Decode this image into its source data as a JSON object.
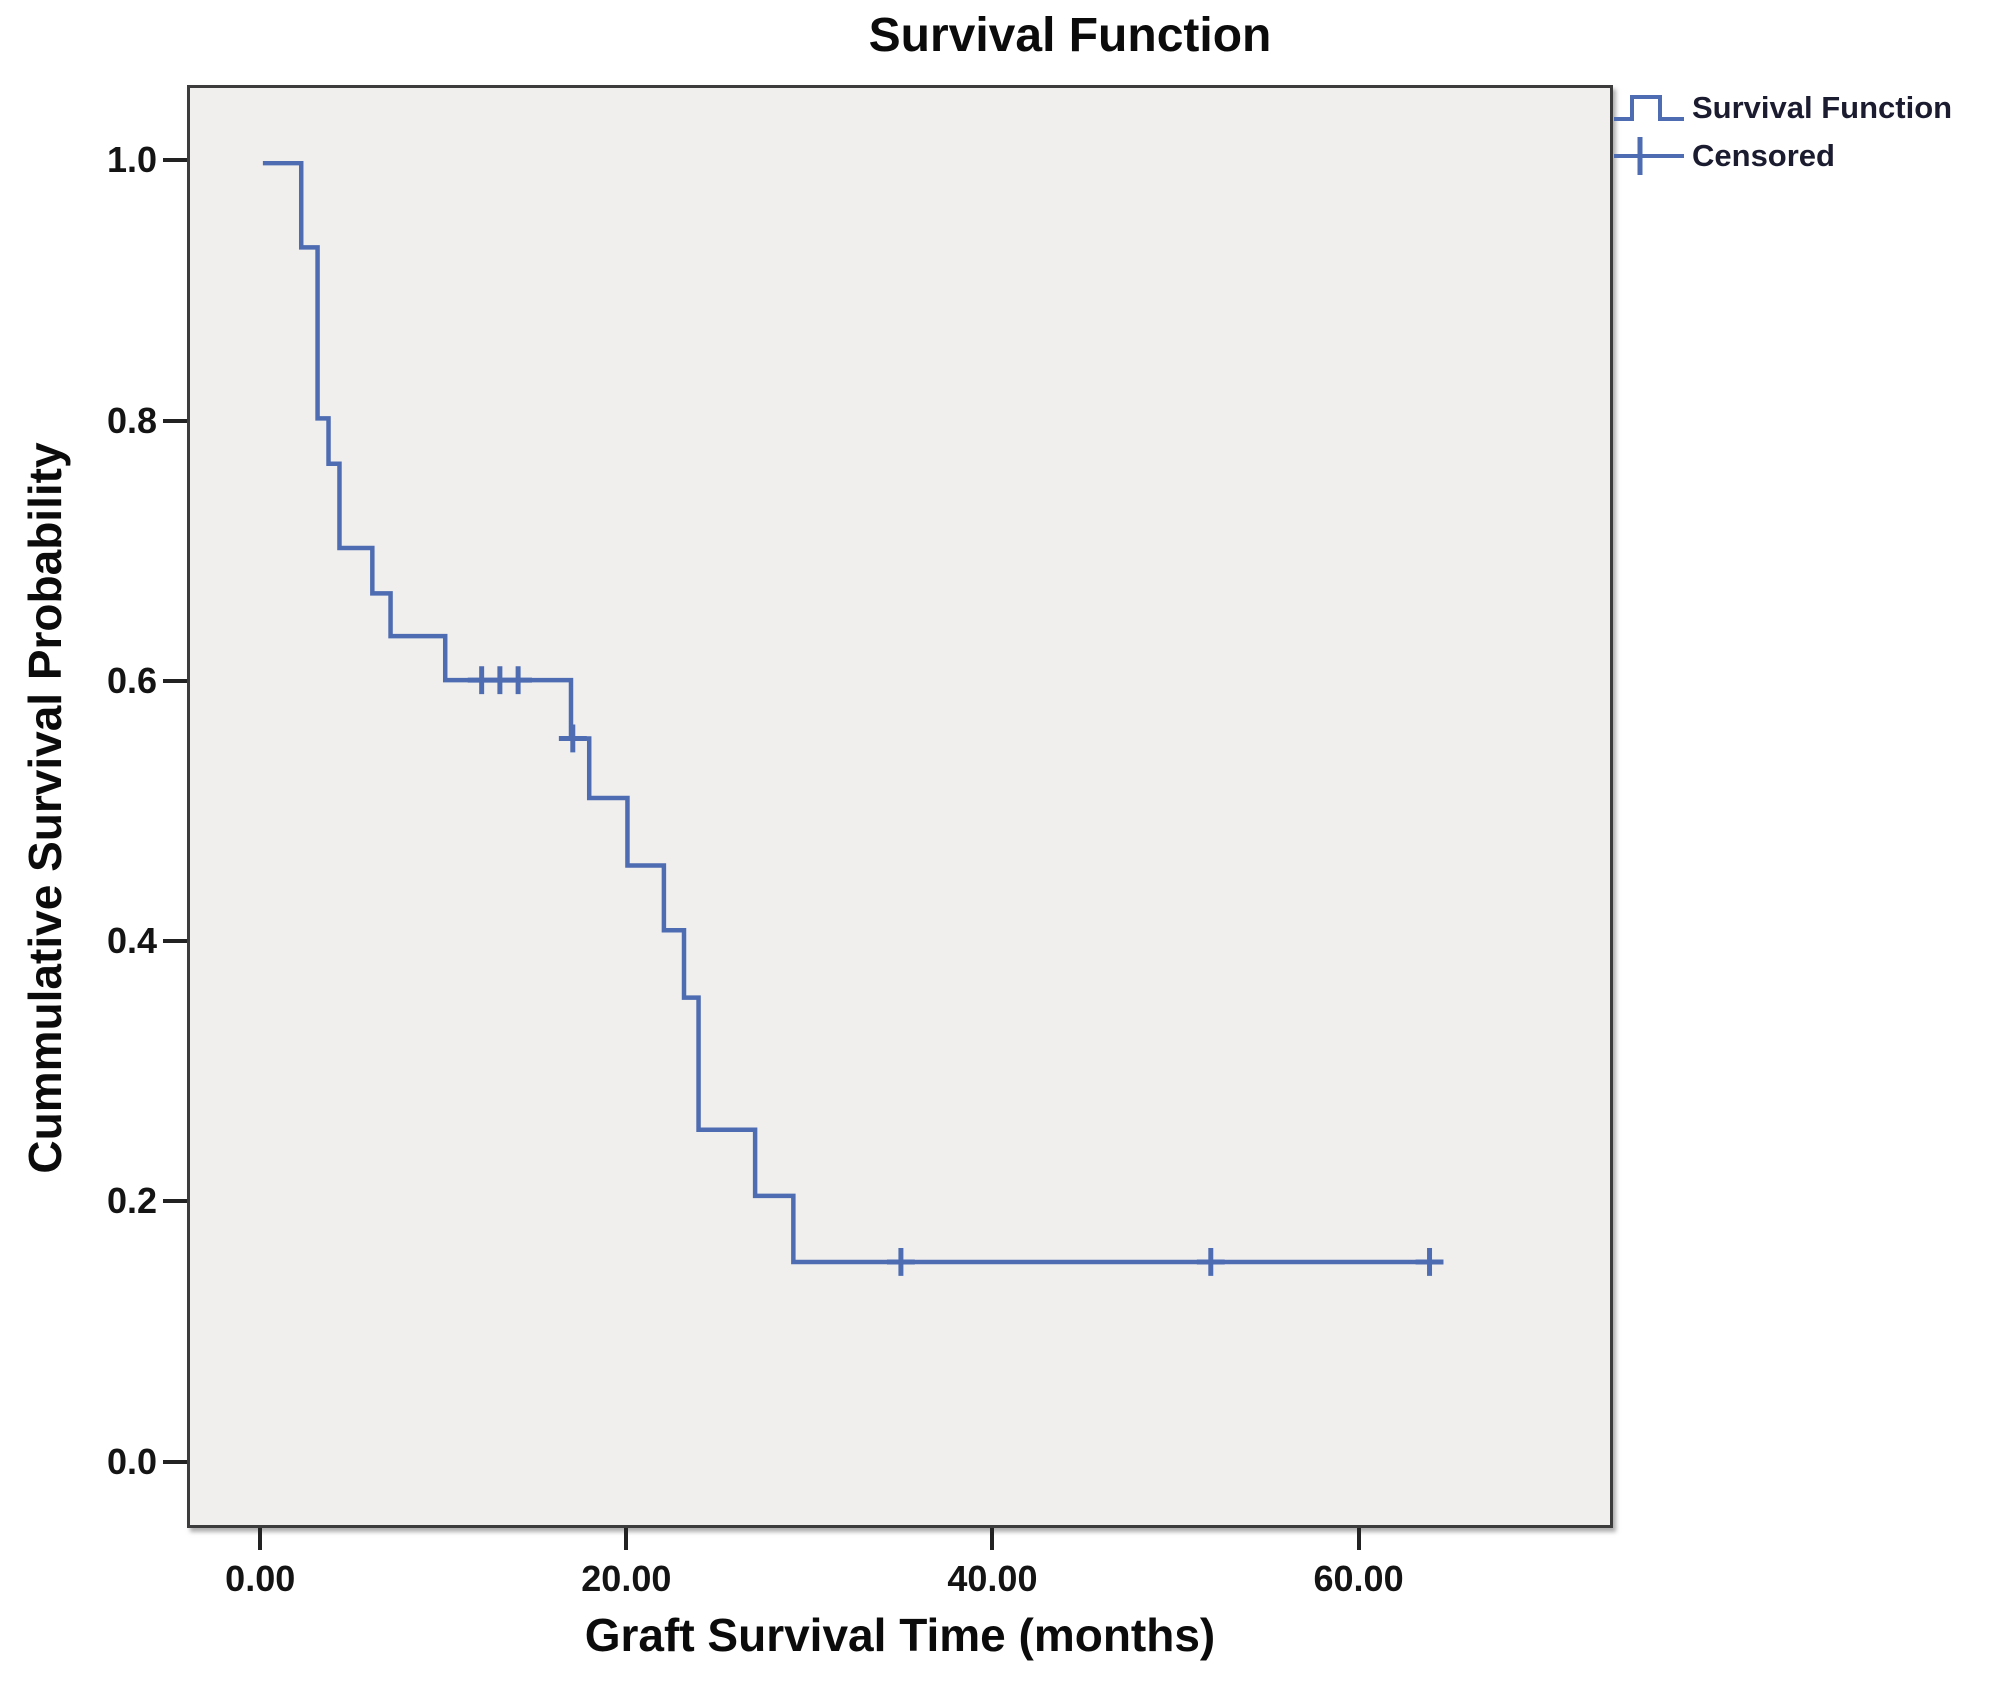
{
  "figure": {
    "title": "Survival Function",
    "x_axis_label": "Graft Survival Time (months)",
    "y_axis_label": "Cummulative Survival Probability"
  },
  "legend": {
    "items": [
      {
        "label": "Survival Function",
        "marker": "step-line-icon"
      },
      {
        "label": "Censored",
        "marker": "plus-icon"
      }
    ]
  },
  "colors": {
    "curve": "#4e6cb2",
    "plot_background": "#f0efed",
    "frame": "#3c3c3c",
    "text": "#0b0b0b"
  },
  "chart_data": {
    "type": "line",
    "subtype": "kaplan-meier-step",
    "title": "Survival Function",
    "xlabel": "Graft Survival Time (months)",
    "ylabel": "Cummulative Survival Probability",
    "xlim": [
      -4.0,
      73.9
    ],
    "ylim": [
      -0.051,
      1.058
    ],
    "grid": false,
    "legend_position": "top-right-outside",
    "x_ticks": [
      {
        "value": 0,
        "label": "0.00"
      },
      {
        "value": 20,
        "label": "20.00"
      },
      {
        "value": 40,
        "label": "40.00"
      },
      {
        "value": 60,
        "label": "60.00"
      }
    ],
    "y_ticks": [
      {
        "value": 0.0,
        "label": "0.0"
      },
      {
        "value": 0.2,
        "label": "0.2"
      },
      {
        "value": 0.4,
        "label": "0.4"
      },
      {
        "value": 0.6,
        "label": "0.6"
      },
      {
        "value": 0.8,
        "label": "0.8"
      },
      {
        "value": 1.0,
        "label": "1.0"
      }
    ],
    "series": [
      {
        "name": "Survival Function",
        "type": "step",
        "points": [
          [
            0.0,
            1.0
          ],
          [
            2.1,
            1.0
          ],
          [
            2.1,
            0.935
          ],
          [
            3.0,
            0.935
          ],
          [
            3.0,
            0.803
          ],
          [
            3.6,
            0.803
          ],
          [
            3.6,
            0.768
          ],
          [
            4.2,
            0.768
          ],
          [
            4.2,
            0.703
          ],
          [
            6.0,
            0.703
          ],
          [
            6.0,
            0.668
          ],
          [
            7.0,
            0.668
          ],
          [
            7.0,
            0.635
          ],
          [
            10.0,
            0.635
          ],
          [
            10.0,
            0.601
          ],
          [
            16.9,
            0.601
          ],
          [
            16.9,
            0.556
          ],
          [
            17.9,
            0.556
          ],
          [
            17.9,
            0.51
          ],
          [
            20.0,
            0.51
          ],
          [
            20.0,
            0.458
          ],
          [
            22.0,
            0.458
          ],
          [
            22.0,
            0.408
          ],
          [
            23.1,
            0.408
          ],
          [
            23.1,
            0.356
          ],
          [
            23.9,
            0.356
          ],
          [
            23.9,
            0.254
          ],
          [
            27.0,
            0.254
          ],
          [
            27.0,
            0.203
          ],
          [
            29.1,
            0.203
          ],
          [
            29.1,
            0.152
          ],
          [
            64.3,
            0.152
          ]
        ]
      },
      {
        "name": "Censored",
        "type": "marker-plus",
        "points": [
          [
            12.0,
            0.601
          ],
          [
            13.0,
            0.601
          ],
          [
            14.0,
            0.601
          ],
          [
            17.0,
            0.556
          ],
          [
            35.0,
            0.152
          ],
          [
            52.0,
            0.152
          ],
          [
            64.0,
            0.152
          ]
        ]
      }
    ]
  }
}
